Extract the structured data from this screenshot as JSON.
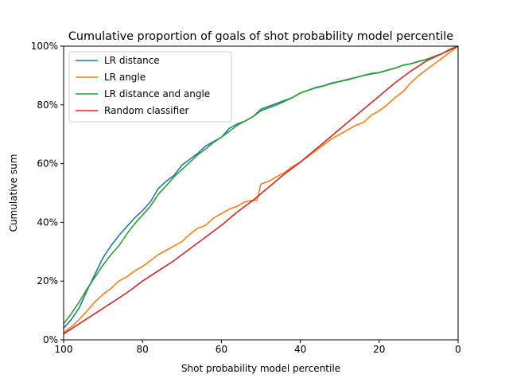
{
  "chart_data": {
    "type": "line",
    "title": "Cumulative proportion of goals of shot probability model percentile",
    "xlabel": "Shot probability model percentile",
    "ylabel": "Cumulative sum",
    "xlim": [
      100,
      0
    ],
    "ylim": [
      0,
      1
    ],
    "xticks": [
      100,
      80,
      60,
      40,
      20,
      0
    ],
    "xtick_labels": [
      "100",
      "80",
      "60",
      "40",
      "20",
      "0"
    ],
    "yticks": [
      0,
      0.2,
      0.4,
      0.6,
      0.8,
      1.0
    ],
    "ytick_labels": [
      "0%",
      "20%",
      "40%",
      "60%",
      "80%",
      "100%"
    ],
    "grid": false,
    "legend_position": "top-left",
    "series": [
      {
        "name": "LR distance",
        "color": "#1f77b4",
        "x": [
          100,
          98,
          96,
          94,
          92,
          90,
          88,
          86,
          84,
          82,
          80,
          78,
          76,
          74,
          72,
          70,
          68,
          66,
          64,
          62,
          60,
          58,
          56,
          54,
          52,
          50,
          48,
          46,
          44,
          42,
          40,
          38,
          36,
          34,
          32,
          30,
          28,
          26,
          24,
          22,
          20,
          18,
          16,
          14,
          12,
          10,
          8,
          6,
          4,
          2,
          0
        ],
        "y": [
          0.04,
          0.07,
          0.11,
          0.17,
          0.225,
          0.28,
          0.32,
          0.355,
          0.385,
          0.415,
          0.44,
          0.47,
          0.515,
          0.54,
          0.56,
          0.595,
          0.615,
          0.635,
          0.66,
          0.675,
          0.69,
          0.72,
          0.735,
          0.745,
          0.76,
          0.785,
          0.795,
          0.805,
          0.815,
          0.825,
          0.84,
          0.85,
          0.86,
          0.865,
          0.875,
          0.88,
          0.885,
          0.893,
          0.9,
          0.907,
          0.91,
          0.918,
          0.925,
          0.935,
          0.94,
          0.948,
          0.955,
          0.965,
          0.975,
          0.99,
          1.0
        ]
      },
      {
        "name": "LR angle",
        "color": "#ff7f0e",
        "x": [
          100,
          98,
          96,
          94,
          92,
          90,
          88,
          86,
          84,
          82,
          80,
          78,
          76,
          74,
          72,
          70,
          68,
          66,
          64,
          62,
          60,
          58,
          56,
          54,
          52,
          51,
          50,
          48,
          46,
          44,
          42,
          40,
          38,
          36,
          34,
          32,
          30,
          28,
          26,
          24,
          22,
          20,
          18,
          16,
          14,
          12,
          10,
          8,
          6,
          4,
          2,
          0
        ],
        "y": [
          0.025,
          0.045,
          0.07,
          0.1,
          0.13,
          0.155,
          0.175,
          0.2,
          0.215,
          0.235,
          0.25,
          0.27,
          0.29,
          0.305,
          0.32,
          0.335,
          0.36,
          0.38,
          0.39,
          0.415,
          0.43,
          0.445,
          0.455,
          0.47,
          0.475,
          0.475,
          0.53,
          0.54,
          0.555,
          0.57,
          0.59,
          0.605,
          0.625,
          0.645,
          0.665,
          0.685,
          0.7,
          0.715,
          0.73,
          0.74,
          0.765,
          0.78,
          0.8,
          0.825,
          0.845,
          0.875,
          0.9,
          0.92,
          0.94,
          0.96,
          0.98,
          1.0
        ]
      },
      {
        "name": "LR distance and angle",
        "color": "#2ca02c",
        "x": [
          100,
          98,
          96,
          94,
          92,
          90,
          88,
          86,
          84,
          82,
          80,
          78,
          76,
          74,
          72,
          70,
          68,
          66,
          64,
          62,
          60,
          58,
          56,
          54,
          52,
          50,
          48,
          46,
          44,
          42,
          40,
          38,
          36,
          34,
          32,
          30,
          28,
          26,
          24,
          22,
          20,
          18,
          16,
          14,
          12,
          10,
          8,
          6,
          4,
          2,
          0
        ],
        "y": [
          0.055,
          0.09,
          0.13,
          0.175,
          0.215,
          0.255,
          0.29,
          0.32,
          0.36,
          0.395,
          0.425,
          0.455,
          0.495,
          0.525,
          0.555,
          0.58,
          0.605,
          0.63,
          0.65,
          0.672,
          0.69,
          0.71,
          0.73,
          0.745,
          0.76,
          0.78,
          0.79,
          0.8,
          0.812,
          0.825,
          0.84,
          0.85,
          0.858,
          0.865,
          0.873,
          0.88,
          0.887,
          0.893,
          0.9,
          0.905,
          0.91,
          0.918,
          0.925,
          0.935,
          0.94,
          0.948,
          0.955,
          0.965,
          0.975,
          0.99,
          1.0
        ]
      },
      {
        "name": "Random classifier",
        "color": "#d62728",
        "x": [
          100,
          96,
          92,
          88,
          84,
          80,
          76,
          72,
          68,
          64,
          60,
          56,
          52,
          48,
          44,
          40,
          36,
          32,
          28,
          24,
          20,
          16,
          12,
          8,
          4,
          0
        ],
        "y": [
          0.02,
          0.055,
          0.09,
          0.125,
          0.16,
          0.2,
          0.235,
          0.27,
          0.31,
          0.35,
          0.39,
          0.435,
          0.475,
          0.52,
          0.565,
          0.605,
          0.65,
          0.695,
          0.74,
          0.785,
          0.83,
          0.875,
          0.915,
          0.95,
          0.975,
          1.0
        ]
      }
    ]
  }
}
